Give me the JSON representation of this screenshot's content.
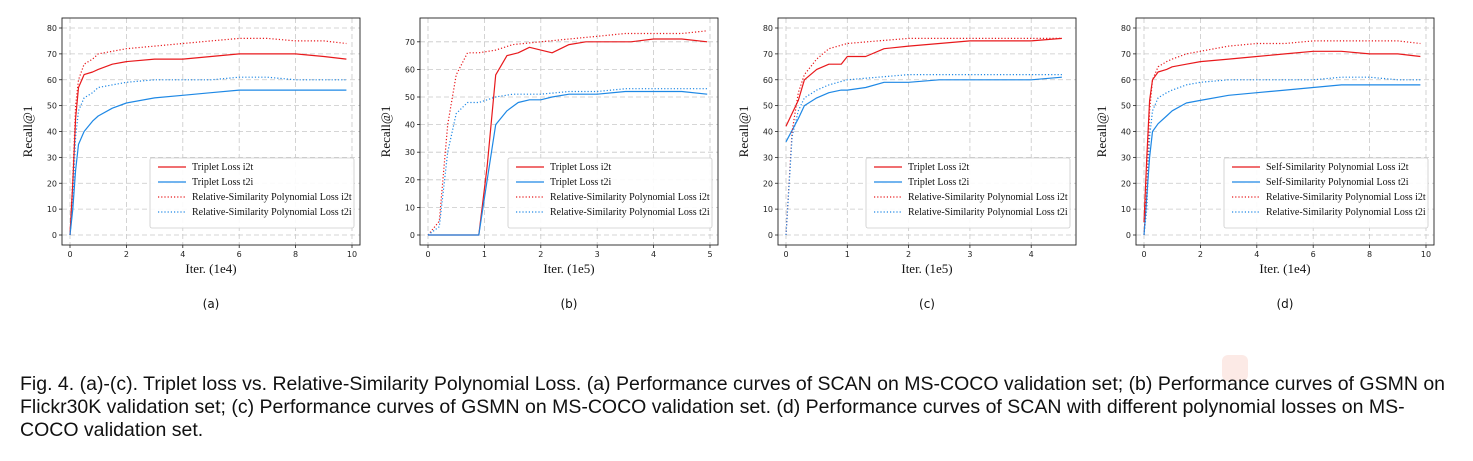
{
  "caption": "Fig. 4. (a)-(c). Triplet loss vs. Relative-Similarity Polynomial Loss. (a) Performance curves of SCAN on MS-COCO validation set; (b) Performance curves of GSMN on Flickr30K validation set; (c) Performance curves of GSMN on MS-COCO validation set. (d) Performance curves of SCAN with different polynomial losses on MS-COCO validation set.",
  "colors": {
    "red": "#e8191c",
    "blue": "#1e88e5"
  },
  "chart_data": [
    {
      "id": "a",
      "type": "line",
      "sublabel": "(a)",
      "xlabel": "Iter. (1e4)",
      "ylabel": "Recall@1",
      "xlim": [
        0,
        10
      ],
      "ylim": [
        0,
        80
      ],
      "xticks": [
        0,
        2,
        4,
        6,
        8,
        10
      ],
      "yticks": [
        0,
        10,
        20,
        30,
        40,
        50,
        60,
        70,
        80
      ],
      "grid": true,
      "legend_position": "lower-right",
      "series": [
        {
          "name": "Triplet Loss i2t",
          "color": "red",
          "style": "solid",
          "x": [
            0,
            0.1,
            0.2,
            0.3,
            0.5,
            0.8,
            1.0,
            1.5,
            2.0,
            3.0,
            4.0,
            5.0,
            6.0,
            7.0,
            8.0,
            9.0,
            9.8
          ],
          "y": [
            0,
            20,
            45,
            57,
            62,
            63,
            64,
            66,
            67,
            68,
            68,
            69,
            70,
            70,
            70,
            69,
            68
          ]
        },
        {
          "name": "Triplet Loss t2i",
          "color": "blue",
          "style": "solid",
          "x": [
            0,
            0.1,
            0.2,
            0.3,
            0.5,
            0.8,
            1.0,
            1.5,
            2.0,
            3.0,
            4.0,
            5.0,
            6.0,
            7.0,
            8.0,
            9.0,
            9.8
          ],
          "y": [
            0,
            10,
            25,
            35,
            40,
            44,
            46,
            49,
            51,
            53,
            54,
            55,
            56,
            56,
            56,
            56,
            56
          ]
        },
        {
          "name": "Relative-Similarity Polynomial Loss i2t",
          "color": "red",
          "style": "dotted",
          "x": [
            0,
            0.1,
            0.2,
            0.3,
            0.5,
            0.8,
            1.0,
            1.5,
            2.0,
            3.0,
            4.0,
            5.0,
            6.0,
            7.0,
            8.0,
            9.0,
            9.8
          ],
          "y": [
            0,
            22,
            50,
            60,
            66,
            68,
            70,
            71,
            72,
            73,
            74,
            75,
            76,
            76,
            75,
            75,
            74
          ]
        },
        {
          "name": "Relative-Similarity Polynomial Loss t2i",
          "color": "blue",
          "style": "dotted",
          "x": [
            0,
            0.1,
            0.2,
            0.3,
            0.5,
            0.8,
            1.0,
            1.5,
            2.0,
            3.0,
            4.0,
            5.0,
            6.0,
            7.0,
            8.0,
            9.0,
            9.8
          ],
          "y": [
            0,
            12,
            38,
            48,
            53,
            55,
            57,
            58,
            59,
            60,
            60,
            60,
            61,
            61,
            60,
            60,
            60
          ]
        }
      ]
    },
    {
      "id": "b",
      "type": "line",
      "sublabel": "(b)",
      "xlabel": "Iter. (1e5)",
      "ylabel": "Recall@1",
      "xlim": [
        0,
        5
      ],
      "ylim": [
        0,
        75
      ],
      "xticks": [
        0,
        1,
        2,
        3,
        4,
        5
      ],
      "yticks": [
        0,
        10,
        20,
        30,
        40,
        50,
        60,
        70
      ],
      "grid": true,
      "legend_position": "lower-right",
      "series": [
        {
          "name": "Triplet Loss i2t",
          "color": "red",
          "style": "solid",
          "x": [
            0,
            0.5,
            0.9,
            1.05,
            1.2,
            1.4,
            1.6,
            1.8,
            2.0,
            2.2,
            2.5,
            2.8,
            3.0,
            3.3,
            3.6,
            4.0,
            4.5,
            4.95
          ],
          "y": [
            0,
            0,
            0,
            25,
            58,
            65,
            66,
            68,
            67,
            66,
            69,
            70,
            70,
            70,
            70,
            71,
            71,
            70
          ]
        },
        {
          "name": "Triplet Loss t2i",
          "color": "blue",
          "style": "solid",
          "x": [
            0,
            0.5,
            0.9,
            1.05,
            1.2,
            1.4,
            1.6,
            1.8,
            2.0,
            2.2,
            2.5,
            2.8,
            3.0,
            3.5,
            4.0,
            4.5,
            4.95
          ],
          "y": [
            0,
            0,
            0,
            20,
            40,
            45,
            48,
            49,
            49,
            50,
            51,
            51,
            51,
            52,
            52,
            52,
            51
          ]
        },
        {
          "name": "Relative-Similarity Polynomial Loss i2t",
          "color": "red",
          "style": "dotted",
          "x": [
            0,
            0.2,
            0.35,
            0.5,
            0.7,
            0.9,
            1.2,
            1.5,
            2.0,
            2.5,
            3.0,
            3.5,
            4.0,
            4.5,
            4.95
          ],
          "y": [
            0,
            5,
            40,
            58,
            66,
            66,
            67,
            69,
            70,
            71,
            72,
            73,
            73,
            73,
            74
          ]
        },
        {
          "name": "Relative-Similarity Polynomial Loss t2i",
          "color": "blue",
          "style": "dotted",
          "x": [
            0,
            0.2,
            0.35,
            0.5,
            0.7,
            0.9,
            1.2,
            1.5,
            2.0,
            2.5,
            3.0,
            3.5,
            4.0,
            4.5,
            4.95
          ],
          "y": [
            0,
            3,
            30,
            44,
            48,
            48,
            50,
            51,
            51,
            52,
            52,
            53,
            53,
            53,
            53
          ]
        }
      ]
    },
    {
      "id": "c",
      "type": "line",
      "sublabel": "(c)",
      "xlabel": "Iter. (1e5)",
      "ylabel": "Recall@1",
      "xlim": [
        0,
        4.6
      ],
      "ylim": [
        0,
        80
      ],
      "xticks": [
        0,
        1,
        2,
        3,
        4
      ],
      "yticks": [
        0,
        10,
        20,
        30,
        40,
        50,
        60,
        70,
        80
      ],
      "grid": true,
      "legend_position": "lower-right",
      "series": [
        {
          "name": "Triplet Loss i2t",
          "color": "red",
          "style": "solid",
          "x": [
            0,
            0.2,
            0.3,
            0.5,
            0.7,
            0.9,
            1.0,
            1.3,
            1.6,
            2.0,
            2.5,
            3.0,
            3.5,
            4.0,
            4.5
          ],
          "y": [
            42,
            52,
            60,
            64,
            66,
            66,
            69,
            69,
            72,
            73,
            74,
            75,
            75,
            75,
            76
          ]
        },
        {
          "name": "Triplet Loss t2i",
          "color": "blue",
          "style": "solid",
          "x": [
            0,
            0.2,
            0.3,
            0.5,
            0.7,
            0.9,
            1.0,
            1.3,
            1.6,
            2.0,
            2.5,
            3.0,
            3.5,
            4.0,
            4.5
          ],
          "y": [
            36,
            45,
            50,
            53,
            55,
            56,
            56,
            57,
            59,
            59,
            60,
            60,
            60,
            60,
            61
          ]
        },
        {
          "name": "Relative-Similarity Polynomial Loss i2t",
          "color": "red",
          "style": "dotted",
          "x": [
            0,
            0.1,
            0.2,
            0.3,
            0.5,
            0.7,
            1.0,
            1.5,
            2.0,
            2.5,
            3.0,
            3.5,
            4.0,
            4.5
          ],
          "y": [
            0,
            40,
            55,
            62,
            68,
            72,
            74,
            75,
            76,
            76,
            76,
            76,
            76,
            76
          ]
        },
        {
          "name": "Relative-Similarity Polynomial Loss t2i",
          "color": "blue",
          "style": "dotted",
          "x": [
            0,
            0.1,
            0.2,
            0.3,
            0.5,
            0.7,
            1.0,
            1.5,
            2.0,
            2.5,
            3.0,
            3.5,
            4.0,
            4.5
          ],
          "y": [
            0,
            38,
            48,
            53,
            56,
            58,
            60,
            61,
            62,
            62,
            62,
            62,
            62,
            62
          ]
        }
      ]
    },
    {
      "id": "d",
      "type": "line",
      "sublabel": "(d)",
      "xlabel": "Iter. (1e4)",
      "ylabel": "Recall@1",
      "xlim": [
        0,
        10
      ],
      "ylim": [
        0,
        80
      ],
      "xticks": [
        0,
        2,
        4,
        6,
        8,
        10
      ],
      "yticks": [
        0,
        10,
        20,
        30,
        40,
        50,
        60,
        70,
        80
      ],
      "grid": true,
      "legend_position": "lower-right",
      "series": [
        {
          "name": "Self-Similarity Polynomial Loss i2t",
          "color": "red",
          "style": "solid",
          "x": [
            0,
            0.1,
            0.2,
            0.3,
            0.5,
            0.8,
            1.0,
            1.5,
            2.0,
            3.0,
            4.0,
            5.0,
            6.0,
            7.0,
            8.0,
            9.0,
            9.8
          ],
          "y": [
            5,
            30,
            52,
            60,
            63,
            64,
            65,
            66,
            67,
            68,
            69,
            70,
            71,
            71,
            70,
            70,
            69
          ]
        },
        {
          "name": "Self-Similarity Polynomial Loss t2i",
          "color": "blue",
          "style": "solid",
          "x": [
            0,
            0.1,
            0.2,
            0.3,
            0.5,
            0.8,
            1.0,
            1.5,
            2.0,
            3.0,
            4.0,
            5.0,
            6.0,
            7.0,
            8.0,
            9.0,
            9.8
          ],
          "y": [
            0,
            15,
            30,
            40,
            43,
            46,
            48,
            51,
            52,
            54,
            55,
            56,
            57,
            58,
            58,
            58,
            58
          ]
        },
        {
          "name": "Relative-Similarity Polynomial Loss i2t",
          "color": "red",
          "style": "dotted",
          "x": [
            0,
            0.1,
            0.2,
            0.3,
            0.5,
            0.8,
            1.0,
            1.5,
            2.0,
            3.0,
            4.0,
            5.0,
            6.0,
            7.0,
            8.0,
            9.0,
            9.8
          ],
          "y": [
            0,
            18,
            48,
            60,
            65,
            67,
            68,
            70,
            71,
            73,
            74,
            74,
            75,
            75,
            75,
            75,
            74
          ]
        },
        {
          "name": "Relative-Similarity Polynomial Loss t2i",
          "color": "blue",
          "style": "dotted",
          "x": [
            0,
            0.1,
            0.2,
            0.3,
            0.5,
            0.8,
            1.0,
            1.5,
            2.0,
            3.0,
            4.0,
            5.0,
            6.0,
            7.0,
            8.0,
            9.0,
            9.8
          ],
          "y": [
            0,
            10,
            38,
            48,
            53,
            55,
            56,
            58,
            59,
            60,
            60,
            60,
            60,
            61,
            61,
            60,
            60
          ]
        }
      ]
    }
  ]
}
